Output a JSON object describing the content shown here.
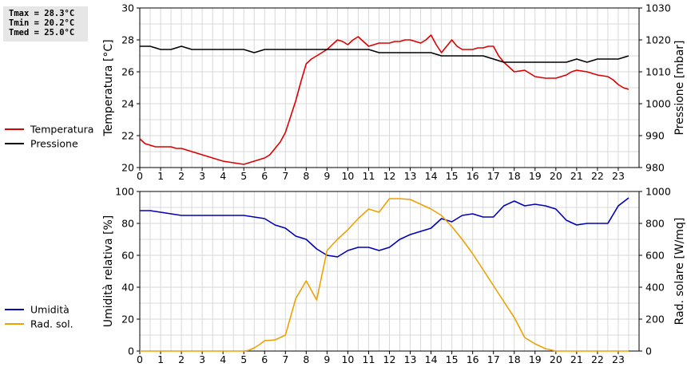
{
  "stats": {
    "tmax": "Tmax = 28.3°C",
    "tmin": "Tmin = 20.2°C",
    "tmed": "Tmed = 25.0°C"
  },
  "chart_data": [
    {
      "type": "line",
      "ylabel": "Temperatura [°C]",
      "y2label": "Pressione [mbar]",
      "ylim": [
        20,
        30
      ],
      "y2lim": [
        980,
        1030
      ],
      "xlim": [
        0,
        24
      ],
      "xticks": [
        0,
        1,
        2,
        3,
        4,
        5,
        6,
        7,
        8,
        9,
        10,
        11,
        12,
        13,
        14,
        15,
        16,
        17,
        18,
        19,
        20,
        21,
        22,
        23
      ],
      "yticks": [
        20,
        22,
        24,
        26,
        28,
        30
      ],
      "y2ticks": [
        980,
        990,
        1000,
        1010,
        1020,
        1030
      ],
      "grid": true,
      "legend_position": "left",
      "series": [
        {
          "name": "Temperatura",
          "color": "#dd0000",
          "axis": "left",
          "x": [
            0,
            0.25,
            0.5,
            0.75,
            1,
            1.25,
            1.5,
            1.75,
            2,
            2.25,
            2.5,
            2.75,
            3,
            3.25,
            3.5,
            3.75,
            4,
            4.25,
            4.5,
            4.75,
            5,
            5.25,
            5.5,
            5.75,
            6,
            6.25,
            6.5,
            6.75,
            7,
            7.25,
            7.5,
            7.75,
            8,
            8.25,
            8.5,
            8.75,
            9,
            9.25,
            9.5,
            9.75,
            10,
            10.25,
            10.5,
            10.75,
            11,
            11.25,
            11.5,
            11.75,
            12,
            12.25,
            12.5,
            12.75,
            13,
            13.25,
            13.5,
            13.75,
            14,
            14.25,
            14.5,
            14.75,
            15,
            15.25,
            15.5,
            15.75,
            16,
            16.25,
            16.5,
            16.75,
            17,
            17.25,
            17.5,
            17.75,
            18,
            18.25,
            18.5,
            18.75,
            19,
            19.25,
            19.5,
            19.75,
            20,
            20.25,
            20.5,
            20.75,
            21,
            21.25,
            21.5,
            21.75,
            22,
            22.25,
            22.5,
            22.75,
            23,
            23.25,
            23.5
          ],
          "values": [
            21.8,
            21.5,
            21.4,
            21.3,
            21.3,
            21.3,
            21.3,
            21.2,
            21.2,
            21.1,
            21.0,
            20.9,
            20.8,
            20.7,
            20.6,
            20.5,
            20.4,
            20.35,
            20.3,
            20.25,
            20.2,
            20.3,
            20.4,
            20.5,
            20.6,
            20.8,
            21.2,
            21.6,
            22.2,
            23.2,
            24.2,
            25.4,
            26.5,
            26.8,
            27.0,
            27.2,
            27.4,
            27.7,
            28.0,
            27.9,
            27.7,
            28.0,
            28.2,
            27.9,
            27.6,
            27.7,
            27.8,
            27.8,
            27.8,
            27.9,
            27.9,
            28.0,
            28.0,
            27.9,
            27.8,
            28.0,
            28.3,
            27.7,
            27.2,
            27.6,
            28.0,
            27.6,
            27.4,
            27.4,
            27.4,
            27.5,
            27.5,
            27.6,
            27.6,
            27.0,
            26.6,
            26.3,
            26.0,
            26.05,
            26.1,
            25.9,
            25.7,
            25.65,
            25.6,
            25.6,
            25.6,
            25.7,
            25.8,
            26.0,
            26.1,
            26.05,
            26.0,
            25.9,
            25.8,
            25.75,
            25.7,
            25.5,
            25.2,
            25.0,
            24.9
          ]
        },
        {
          "name": "Pressione",
          "color": "#000000",
          "axis": "right",
          "x": [
            0,
            0.5,
            1,
            1.5,
            2,
            2.5,
            3,
            3.5,
            4,
            4.5,
            5,
            5.5,
            6,
            6.5,
            7,
            7.5,
            8,
            8.5,
            9,
            9.5,
            10,
            10.5,
            11,
            11.5,
            12,
            12.5,
            13,
            13.5,
            14,
            14.5,
            15,
            15.5,
            16,
            16.5,
            17,
            17.5,
            18,
            18.5,
            19,
            19.5,
            20,
            20.5,
            21,
            21.5,
            22,
            22.5,
            23,
            23.5
          ],
          "values": [
            1018,
            1018,
            1017,
            1017,
            1018,
            1017,
            1017,
            1017,
            1017,
            1017,
            1017,
            1016,
            1017,
            1017,
            1017,
            1017,
            1017,
            1017,
            1017,
            1017,
            1017,
            1017,
            1017,
            1016,
            1016,
            1016,
            1016,
            1016,
            1016,
            1015,
            1015,
            1015,
            1015,
            1015,
            1014,
            1013,
            1013,
            1013,
            1013,
            1013,
            1013,
            1013,
            1014,
            1013,
            1014,
            1014,
            1014,
            1015
          ]
        }
      ]
    },
    {
      "type": "line",
      "ylabel": "Umidità relativa [%]",
      "y2label": "Rad. solare [W/mq]",
      "ylim": [
        0,
        100
      ],
      "y2lim": [
        0,
        1000
      ],
      "xlim": [
        0,
        24
      ],
      "xticks": [
        0,
        1,
        2,
        3,
        4,
        5,
        6,
        7,
        8,
        9,
        10,
        11,
        12,
        13,
        14,
        15,
        16,
        17,
        18,
        19,
        20,
        21,
        22,
        23
      ],
      "yticks": [
        0,
        20,
        40,
        60,
        80,
        100
      ],
      "y2ticks": [
        0,
        200,
        400,
        600,
        800,
        1000
      ],
      "grid": true,
      "legend_position": "left",
      "series": [
        {
          "name": "Umidità",
          "color": "#0000bb",
          "axis": "left",
          "x": [
            0,
            0.5,
            1,
            1.5,
            2,
            2.5,
            3,
            3.5,
            4,
            4.5,
            5,
            5.5,
            6,
            6.5,
            7,
            7.5,
            8,
            8.5,
            9,
            9.5,
            10,
            10.5,
            11,
            11.5,
            12,
            12.5,
            13,
            13.5,
            14,
            14.5,
            15,
            15.5,
            16,
            16.5,
            17,
            17.5,
            18,
            18.5,
            19,
            19.5,
            20,
            20.5,
            21,
            21.5,
            22,
            22.5,
            23,
            23.5
          ],
          "values": [
            88,
            88,
            87,
            86,
            85,
            85,
            85,
            85,
            85,
            85,
            85,
            84,
            83,
            79,
            77,
            72,
            70,
            64,
            60,
            59,
            63,
            65,
            65,
            63,
            65,
            70,
            73,
            75,
            77,
            83,
            81,
            85,
            86,
            84,
            84,
            91,
            94,
            91,
            92,
            91,
            89,
            82,
            79,
            80,
            80,
            80,
            91,
            96
          ]
        },
        {
          "name": "Rad. sol.",
          "color": "#f0a000",
          "axis": "right",
          "x": [
            0,
            0.5,
            1,
            1.5,
            2,
            2.5,
            3,
            3.5,
            4,
            4.5,
            5,
            5.25,
            5.5,
            5.75,
            6,
            6.5,
            7,
            7.5,
            8,
            8.5,
            9,
            9.5,
            10,
            10.5,
            11,
            11.5,
            12,
            12.5,
            13,
            13.5,
            14,
            14.5,
            15,
            15.5,
            16,
            16.5,
            17,
            17.5,
            18,
            18.5,
            19,
            19.5,
            20,
            20.5,
            21,
            21.5,
            22,
            22.5,
            23,
            23.5
          ],
          "values": [
            0,
            0,
            0,
            0,
            0,
            0,
            0,
            0,
            0,
            0,
            0,
            5,
            20,
            40,
            65,
            70,
            100,
            330,
            440,
            320,
            630,
            700,
            760,
            830,
            890,
            870,
            955,
            955,
            950,
            920,
            890,
            850,
            780,
            700,
            610,
            510,
            410,
            310,
            210,
            85,
            45,
            15,
            0,
            0,
            0,
            0,
            0,
            0,
            0,
            0
          ]
        }
      ]
    }
  ]
}
